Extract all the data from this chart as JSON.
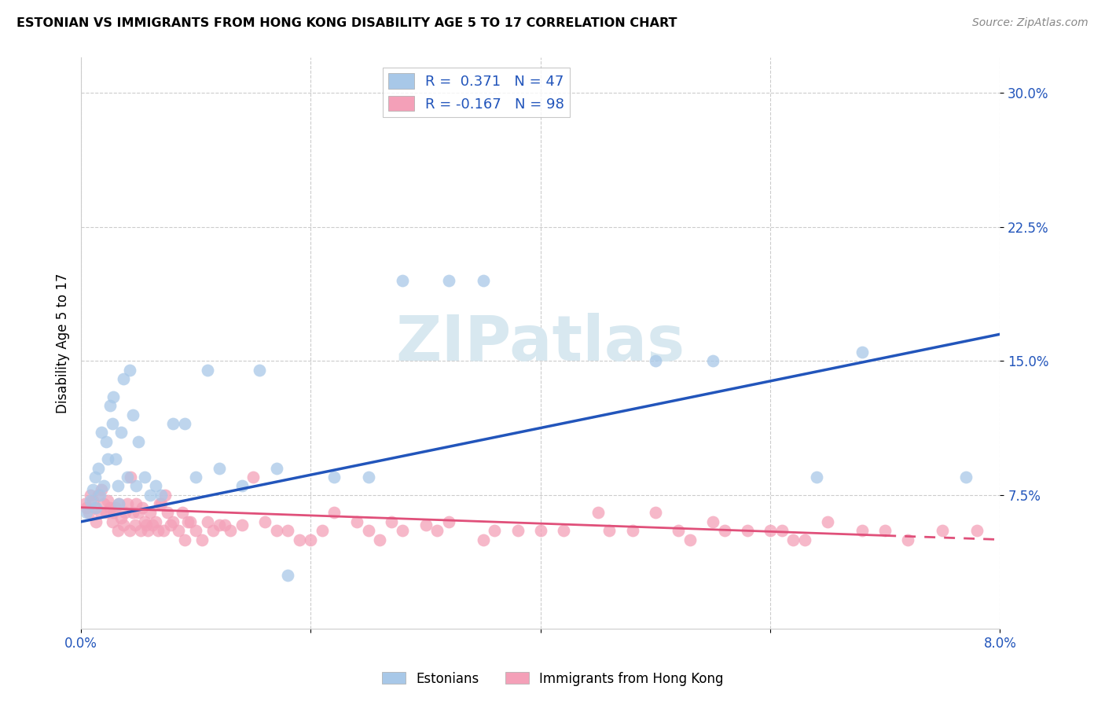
{
  "title": "ESTONIAN VS IMMIGRANTS FROM HONG KONG DISABILITY AGE 5 TO 17 CORRELATION CHART",
  "source": "Source: ZipAtlas.com",
  "ylabel_label": "Disability Age 5 to 17",
  "x_min": 0.0,
  "x_max": 8.0,
  "y_min": 0.0,
  "y_max": 32.0,
  "y_ticks": [
    7.5,
    15.0,
    22.5,
    30.0
  ],
  "y_tick_labels": [
    "7.5%",
    "15.0%",
    "22.5%",
    "30.0%"
  ],
  "x_ticks": [
    0.0,
    2.0,
    4.0,
    6.0,
    8.0
  ],
  "x_tick_labels": [
    "0.0%",
    "",
    "",
    "",
    "8.0%"
  ],
  "blue_R": 0.371,
  "blue_N": 47,
  "pink_R": -0.167,
  "pink_N": 98,
  "blue_color": "#a8c8e8",
  "pink_color": "#f4a0b8",
  "blue_line_color": "#2255bb",
  "pink_line_color": "#e0507a",
  "watermark_color": "#d8e8f0",
  "blue_scatter_x": [
    0.05,
    0.08,
    0.1,
    0.12,
    0.13,
    0.15,
    0.16,
    0.18,
    0.2,
    0.22,
    0.23,
    0.25,
    0.27,
    0.28,
    0.3,
    0.32,
    0.33,
    0.35,
    0.37,
    0.4,
    0.42,
    0.45,
    0.48,
    0.5,
    0.55,
    0.6,
    0.65,
    0.7,
    0.8,
    0.9,
    1.0,
    1.1,
    1.2,
    1.4,
    1.55,
    1.7,
    1.8,
    2.2,
    2.5,
    2.8,
    3.2,
    3.5,
    5.0,
    5.5,
    6.4,
    6.8,
    7.7
  ],
  "blue_scatter_y": [
    6.5,
    7.2,
    7.8,
    8.5,
    6.8,
    9.0,
    7.5,
    11.0,
    8.0,
    10.5,
    9.5,
    12.5,
    11.5,
    13.0,
    9.5,
    8.0,
    7.0,
    11.0,
    14.0,
    8.5,
    14.5,
    12.0,
    8.0,
    10.5,
    8.5,
    7.5,
    8.0,
    7.5,
    11.5,
    11.5,
    8.5,
    14.5,
    9.0,
    8.0,
    14.5,
    9.0,
    3.0,
    8.5,
    8.5,
    19.5,
    19.5,
    19.5,
    15.0,
    15.0,
    8.5,
    15.5,
    8.5
  ],
  "pink_scatter_x": [
    0.03,
    0.05,
    0.07,
    0.08,
    0.1,
    0.12,
    0.13,
    0.15,
    0.17,
    0.18,
    0.2,
    0.22,
    0.23,
    0.25,
    0.27,
    0.28,
    0.3,
    0.32,
    0.33,
    0.35,
    0.37,
    0.38,
    0.4,
    0.42,
    0.43,
    0.45,
    0.47,
    0.48,
    0.5,
    0.52,
    0.53,
    0.55,
    0.57,
    0.58,
    0.6,
    0.62,
    0.65,
    0.67,
    0.7,
    0.72,
    0.75,
    0.78,
    0.8,
    0.85,
    0.9,
    0.95,
    1.0,
    1.05,
    1.1,
    1.2,
    1.3,
    1.4,
    1.5,
    1.6,
    1.7,
    1.8,
    2.0,
    2.2,
    2.4,
    2.5,
    2.7,
    2.8,
    3.0,
    3.2,
    3.5,
    3.8,
    4.0,
    4.5,
    4.8,
    5.0,
    5.2,
    5.5,
    5.8,
    6.0,
    6.2,
    6.5,
    6.8,
    7.0,
    7.2,
    7.5,
    7.8,
    5.6,
    6.1,
    6.3,
    4.2,
    4.6,
    5.3,
    3.6,
    1.9,
    2.1,
    2.6,
    3.1,
    0.68,
    0.88,
    0.73,
    0.93,
    1.15,
    1.25
  ],
  "pink_scatter_y": [
    7.0,
    6.8,
    6.5,
    7.5,
    7.2,
    6.8,
    6.0,
    7.5,
    6.5,
    7.8,
    7.0,
    6.5,
    7.2,
    6.8,
    6.0,
    6.5,
    6.8,
    5.5,
    7.0,
    6.2,
    5.8,
    6.5,
    7.0,
    5.5,
    8.5,
    6.5,
    5.8,
    7.0,
    6.5,
    5.5,
    6.8,
    6.0,
    5.8,
    5.5,
    6.5,
    5.8,
    6.0,
    5.5,
    7.0,
    5.5,
    6.5,
    5.8,
    6.0,
    5.5,
    5.0,
    6.0,
    5.5,
    5.0,
    6.0,
    5.8,
    5.5,
    5.8,
    8.5,
    6.0,
    5.5,
    5.5,
    5.0,
    6.5,
    6.0,
    5.5,
    6.0,
    5.5,
    5.8,
    6.0,
    5.0,
    5.5,
    5.5,
    6.5,
    5.5,
    6.5,
    5.5,
    6.0,
    5.5,
    5.5,
    5.0,
    6.0,
    5.5,
    5.5,
    5.0,
    5.5,
    5.5,
    5.5,
    5.5,
    5.0,
    5.5,
    5.5,
    5.0,
    5.5,
    5.0,
    5.5,
    5.0,
    5.5,
    7.0,
    6.5,
    7.5,
    6.0,
    5.5,
    5.8
  ],
  "blue_line_x0": 0.0,
  "blue_line_y0": 6.0,
  "blue_line_x1": 8.0,
  "blue_line_y1": 16.5,
  "pink_line_x0": 0.0,
  "pink_line_y0": 6.8,
  "pink_line_x1": 8.0,
  "pink_line_y1": 5.0,
  "pink_solid_end": 7.0
}
